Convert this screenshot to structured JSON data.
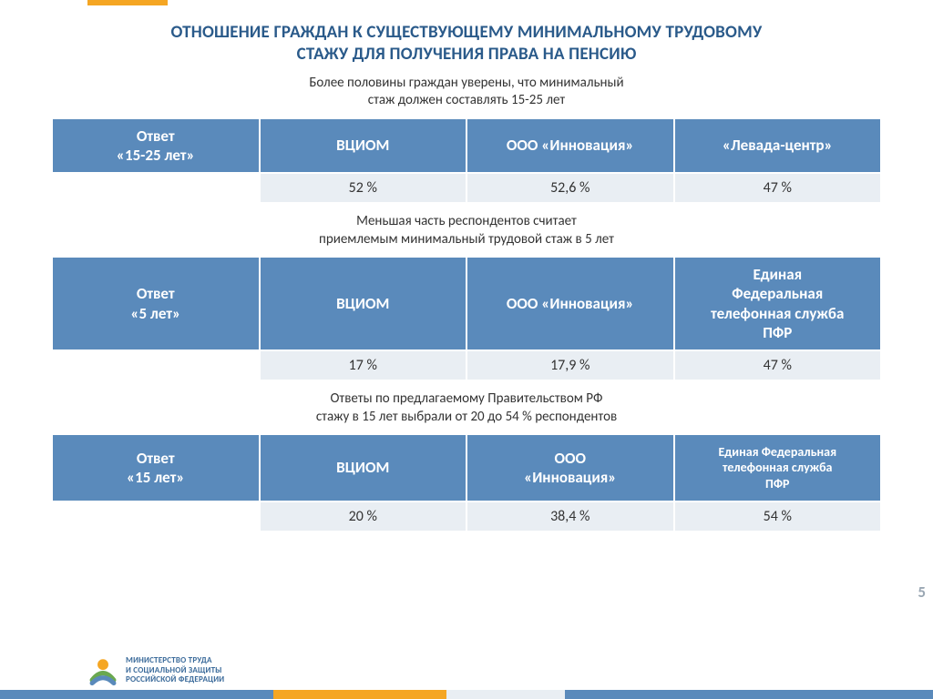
{
  "page_number": "5",
  "colors": {
    "title": "#2a5a8a",
    "header_bg": "#5a8abb",
    "header_text": "#ffffff",
    "data_bg": "#e9eef3",
    "data_text": "#333333",
    "accent_orange": "#f5a623"
  },
  "main_title_line1": "ОТНОШЕНИЕ ГРАЖДАН К СУЩЕСТВУЮЩЕМУ МИНИМАЛЬНОМУ ТРУДОВОМУ",
  "main_title_line2": "СТАЖУ ДЛЯ ПОЛУЧЕНИЯ ПРАВА НА ПЕНСИЮ",
  "section1": {
    "subtitle_line1": "Более половины граждан уверены, что минимальный",
    "subtitle_line2": "стаж должен составлять 15-25 лет",
    "headers": [
      "Ответ\n«15-25 лет»",
      "ВЦИОМ",
      "ООО «Инновация»",
      "«Левада-центр»"
    ],
    "row": [
      "",
      "52 %",
      "52,6 %",
      "47 %"
    ]
  },
  "section2": {
    "subtitle_line1": "Меньшая часть респондентов считает",
    "subtitle_line2": "приемлемым минимальный трудовой стаж в 5 лет",
    "headers": [
      "Ответ\n«5 лет»",
      "ВЦИОМ",
      "ООО «Инновация»",
      "Единая\nФедеральная\nтелефонная служба\nПФР"
    ],
    "row": [
      "",
      "17 %",
      "17,9 %",
      "47 %"
    ]
  },
  "section3": {
    "subtitle_line1": "Ответы по предлагаемому Правительством РФ",
    "subtitle_line2": "стажу в 15 лет выбрали от 20 до 54 % респондентов",
    "headers": [
      "Ответ\n«15 лет»",
      "ВЦИОМ",
      "ООО\n«Инновация»",
      "Единая Федеральная\nтелефонная служба\nПФР"
    ],
    "row": [
      "",
      "20 %",
      "38,4 %",
      "54 %"
    ]
  },
  "footer_logo_text_line1": "МИНИСТЕРСТВО ТРУДА",
  "footer_logo_text_line2": "И СОЦИАЛЬНОЙ ЗАЩИТЫ",
  "footer_logo_text_line3": "РОССИЙСКОЙ ФЕДЕРАЦИИ"
}
